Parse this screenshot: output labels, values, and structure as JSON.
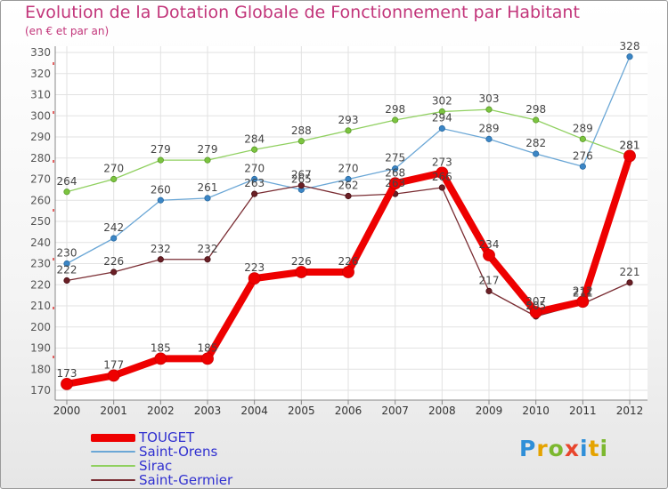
{
  "chart_data": {
    "type": "line",
    "title": "Evolution de la Dotation Globale de Fonctionnement par Habitant",
    "subtitle": "(en € et par an)",
    "xlabel": "",
    "ylabel": "",
    "ylim": [
      170,
      330
    ],
    "y_ticks": [
      170,
      180,
      190,
      200,
      210,
      220,
      230,
      240,
      250,
      260,
      270,
      280,
      290,
      300,
      310,
      320,
      330
    ],
    "x": [
      "2000",
      "2001",
      "2002",
      "2003",
      "2004",
      "2005",
      "2006",
      "2007",
      "2008",
      "2009",
      "2010",
      "2011",
      "2012"
    ],
    "grid": true,
    "series": [
      {
        "name": "TOUGET",
        "color": "#ee0000",
        "values": [
          173,
          177,
          185,
          185,
          223,
          226,
          226,
          268,
          273,
          234,
          207,
          212,
          281
        ]
      },
      {
        "name": "Saint-Orens",
        "color": "#6ba7d6",
        "values": [
          230,
          242,
          260,
          261,
          270,
          265,
          270,
          275,
          294,
          289,
          282,
          276,
          328
        ]
      },
      {
        "name": "Sirac",
        "color": "#90d060",
        "values": [
          264,
          270,
          279,
          279,
          284,
          288,
          293,
          298,
          302,
          303,
          298,
          289,
          281
        ]
      },
      {
        "name": "Saint-Germier",
        "color": "#7a2d33",
        "values": [
          222,
          226,
          232,
          232,
          263,
          267,
          262,
          263,
          266,
          217,
          205,
          211,
          221
        ]
      }
    ],
    "logo": "Proxiti",
    "logo_letters": [
      "P",
      "r",
      "o",
      "x",
      "i",
      "t",
      "i"
    ]
  }
}
